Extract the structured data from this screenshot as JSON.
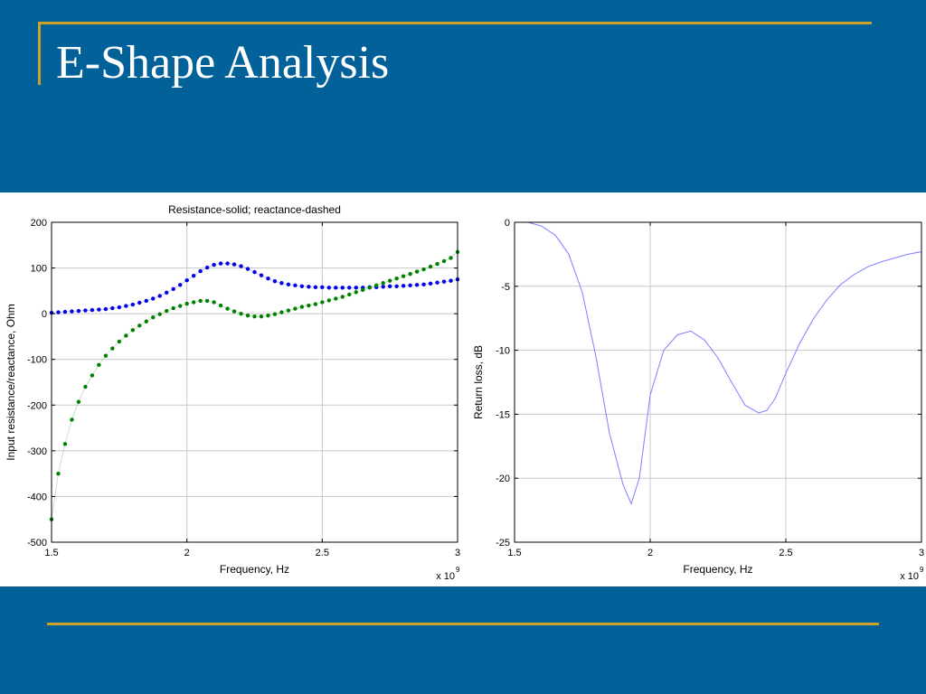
{
  "slide": {
    "title": "E-Shape Analysis"
  },
  "colors": {
    "background": "#036199",
    "accent_rule": "#c9a227",
    "resistance": "#0000e6",
    "reactance": "#008000",
    "return_loss": "#7f7fff"
  },
  "chart_data": [
    {
      "type": "scatter",
      "title": "Resistance-solid; reactance-dashed",
      "xlabel": "Frequency, Hz",
      "ylabel": "Input  resistance/reactance, Ohm",
      "x_multiplier": "x 10",
      "x_multiplier_exp": "9",
      "xlim": [
        1.5,
        3
      ],
      "ylim": [
        -500,
        200
      ],
      "xticks": [
        1.5,
        2,
        2.5,
        3
      ],
      "xtick_labels": [
        "1.5",
        "2",
        "2.5",
        "3"
      ],
      "yticks": [
        200,
        100,
        0,
        -100,
        -200,
        -300,
        -400,
        -500
      ],
      "ytick_labels": [
        "200",
        "100",
        "0",
        "-100",
        "-200",
        "-300",
        "-400",
        "-500"
      ],
      "grid": true,
      "x": [
        1.5,
        1.525,
        1.55,
        1.575,
        1.6,
        1.625,
        1.65,
        1.675,
        1.7,
        1.725,
        1.75,
        1.775,
        1.8,
        1.825,
        1.85,
        1.875,
        1.9,
        1.925,
        1.95,
        1.975,
        2.0,
        2.025,
        2.05,
        2.075,
        2.1,
        2.125,
        2.15,
        2.175,
        2.2,
        2.225,
        2.25,
        2.275,
        2.3,
        2.325,
        2.35,
        2.375,
        2.4,
        2.425,
        2.45,
        2.475,
        2.5,
        2.525,
        2.55,
        2.575,
        2.6,
        2.625,
        2.65,
        2.675,
        2.7,
        2.725,
        2.75,
        2.775,
        2.8,
        2.825,
        2.85,
        2.875,
        2.9,
        2.925,
        2.95,
        2.975,
        3.0
      ],
      "series": [
        {
          "color": "#0000e6",
          "values": [
            2,
            3,
            4,
            5,
            6,
            7,
            8,
            9,
            10,
            12,
            14,
            17,
            20,
            24,
            28,
            33,
            39,
            46,
            54,
            63,
            73,
            83,
            93,
            101,
            107,
            110,
            110,
            108,
            104,
            98,
            91,
            84,
            77,
            71,
            67,
            64,
            62,
            60,
            59,
            58,
            58,
            57,
            57,
            57,
            57,
            57,
            57,
            58,
            58,
            59,
            60,
            60,
            61,
            62,
            63,
            64,
            66,
            68,
            70,
            72,
            75
          ]
        },
        {
          "color": "#008000",
          "values": [
            -450,
            -350,
            -285,
            -232,
            -193,
            -160,
            -135,
            -112,
            -92,
            -76,
            -61,
            -48,
            -36,
            -26,
            -17,
            -8,
            -1,
            6,
            12,
            17,
            22,
            25,
            28,
            28,
            25,
            18,
            11,
            5,
            0,
            -4,
            -6,
            -6,
            -4,
            -1,
            3,
            7,
            11,
            15,
            18,
            21,
            25,
            29,
            33,
            37,
            42,
            47,
            52,
            57,
            62,
            67,
            72,
            77,
            82,
            87,
            92,
            97,
            103,
            109,
            115,
            122,
            135
          ]
        }
      ]
    },
    {
      "type": "line",
      "title": "",
      "xlabel": "Frequency, Hz",
      "ylabel": "Return loss, dB",
      "x_multiplier": "x 10",
      "x_multiplier_exp": "9",
      "xlim": [
        1.5,
        3
      ],
      "ylim": [
        -25,
        0
      ],
      "xticks": [
        1.5,
        2,
        2.5,
        3
      ],
      "xtick_labels": [
        "1.5",
        "2",
        "2.5",
        "3"
      ],
      "yticks": [
        0,
        -5,
        -10,
        -15,
        -20,
        -25
      ],
      "ytick_labels": [
        "0",
        "-5",
        "-10",
        "-15",
        "-20",
        "-25"
      ],
      "grid": true,
      "x": [
        1.5,
        1.55,
        1.6,
        1.65,
        1.7,
        1.75,
        1.8,
        1.85,
        1.9,
        1.93,
        1.96,
        2.0,
        2.05,
        2.1,
        2.15,
        2.2,
        2.25,
        2.3,
        2.35,
        2.4,
        2.43,
        2.46,
        2.5,
        2.55,
        2.6,
        2.65,
        2.7,
        2.75,
        2.8,
        2.85,
        2.9,
        2.95,
        3.0
      ],
      "series": [
        {
          "color": "#7f7fff",
          "values": [
            0,
            0,
            -0.3,
            -1.0,
            -2.5,
            -5.5,
            -10.5,
            -16.5,
            -20.5,
            -22.0,
            -20.0,
            -13.5,
            -10.0,
            -8.8,
            -8.5,
            -9.2,
            -10.6,
            -12.5,
            -14.3,
            -14.9,
            -14.7,
            -13.8,
            -11.8,
            -9.5,
            -7.6,
            -6.1,
            -4.9,
            -4.1,
            -3.5,
            -3.1,
            -2.8,
            -2.5,
            -2.3
          ]
        }
      ]
    }
  ]
}
